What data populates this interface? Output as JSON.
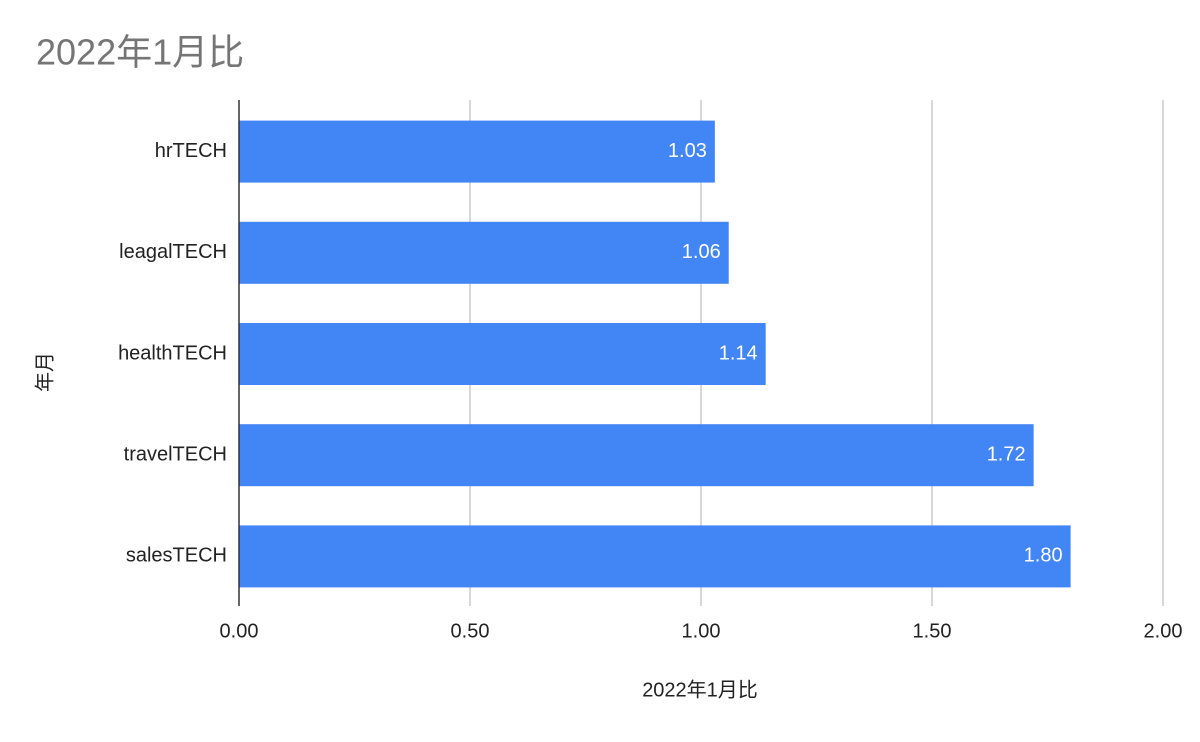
{
  "chart_data": {
    "type": "bar",
    "orientation": "horizontal",
    "title": "2022年1月比",
    "x_label": "2022年1月比",
    "y_label": "年月",
    "categories": [
      "hrTECH",
      "leagalTECH",
      "healthTECH",
      "travelTECH",
      "salesTECH"
    ],
    "values": [
      1.03,
      1.06,
      1.14,
      1.72,
      1.8
    ],
    "value_labels": [
      "1.03",
      "1.06",
      "1.14",
      "1.72",
      "1.80"
    ],
    "color": "#4285f4",
    "xlim": [
      0,
      2
    ],
    "xticks": [
      {
        "value": 0,
        "label": "0.00"
      },
      {
        "value": 0.5,
        "label": "0.50"
      },
      {
        "value": 1,
        "label": "1.00"
      },
      {
        "value": 1.5,
        "label": "1.50"
      },
      {
        "value": 2,
        "label": "2.00"
      }
    ],
    "grid": true
  }
}
